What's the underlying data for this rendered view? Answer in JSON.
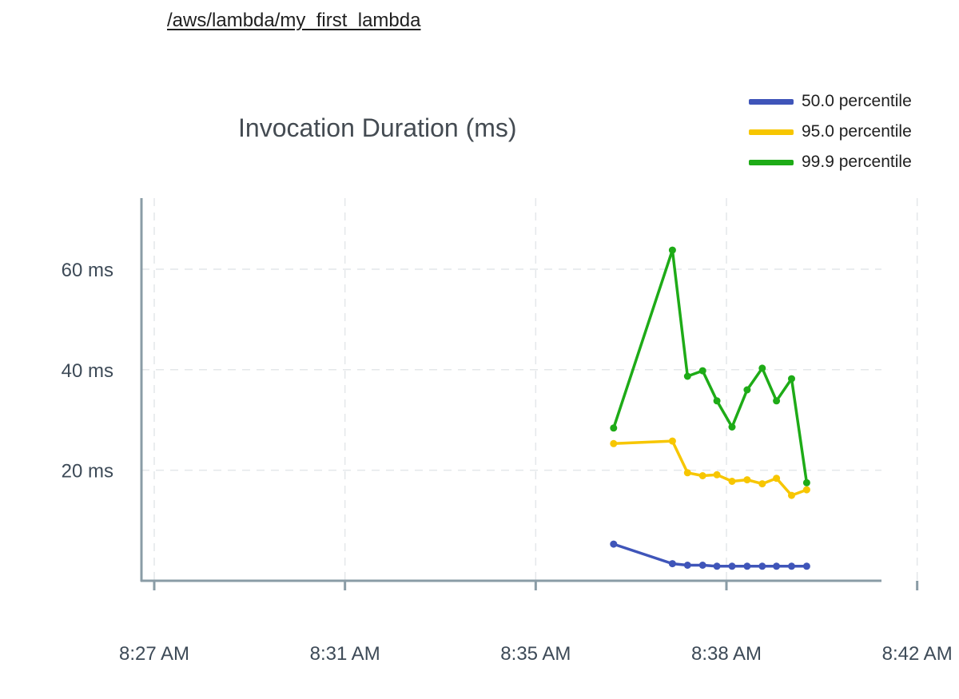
{
  "header": {
    "log_group": "/aws/lambda/my_first_lambda"
  },
  "colors": {
    "p50": "#3f55b9",
    "p95": "#f7c600",
    "p999": "#1eab17",
    "axis": "#8a9ca6",
    "grid": "#e4e7ea"
  },
  "chart_data": {
    "type": "line",
    "title": "Invocation Duration (ms)",
    "xlabel": "",
    "ylabel": "",
    "xlim_minutes": [
      506.9,
      522.1
    ],
    "ylim": [
      -2,
      72
    ],
    "grid": true,
    "legend_position": "top-right",
    "x_ticks": [
      {
        "label": "8:27 AM",
        "minute": 507
      },
      {
        "label": "8:31 AM",
        "minute": 511
      },
      {
        "label": "8:35 AM",
        "minute": 515
      },
      {
        "label": "8:38 AM",
        "minute": 519
      },
      {
        "label": "8:42 AM",
        "minute": 523
      }
    ],
    "y_ticks": [
      {
        "label": "20 ms",
        "value": 20
      },
      {
        "label": "40 ms",
        "value": 40
      },
      {
        "label": "60 ms",
        "value": 60
      }
    ],
    "x": [
      "8:36:38",
      "8:37:52",
      "8:38:11",
      "8:38:30",
      "8:38:48",
      "8:39:07",
      "8:39:26",
      "8:39:45",
      "8:40:03",
      "8:40:22",
      "8:40:41"
    ],
    "series": [
      {
        "name": "50.0 percentile",
        "color_key": "p50",
        "x": [
          "8:36:38",
          "8:37:52",
          "8:38:11",
          "8:38:30",
          "8:38:48",
          "8:39:07",
          "8:39:26",
          "8:39:45",
          "8:40:03",
          "8:40:22",
          "8:40:41"
        ],
        "values": [
          5.3,
          1.4,
          1.1,
          1.1,
          0.9,
          0.9,
          0.9,
          0.9,
          0.9,
          0.9,
          0.9
        ]
      },
      {
        "name": "95.0 percentile",
        "color_key": "p95",
        "x": [
          "8:36:38",
          "8:37:52",
          "8:38:11",
          "8:38:30",
          "8:38:48",
          "8:39:07",
          "8:39:26",
          "8:39:45",
          "8:40:03",
          "8:40:22",
          "8:40:41"
        ],
        "values": [
          25.3,
          25.8,
          19.5,
          18.9,
          19.1,
          17.8,
          18.1,
          17.3,
          18.4,
          15.0,
          16.1
        ]
      },
      {
        "name": "99.9 percentile",
        "color_key": "p999",
        "x": [
          "8:36:38",
          "8:37:52",
          "8:38:11",
          "8:38:30",
          "8:38:48",
          "8:39:07",
          "8:39:26",
          "8:39:45",
          "8:40:03",
          "8:40:22",
          "8:40:41"
        ],
        "values": [
          28.4,
          63.8,
          38.7,
          39.8,
          33.8,
          28.6,
          36.0,
          40.3,
          33.8,
          38.2,
          17.5
        ]
      }
    ]
  }
}
